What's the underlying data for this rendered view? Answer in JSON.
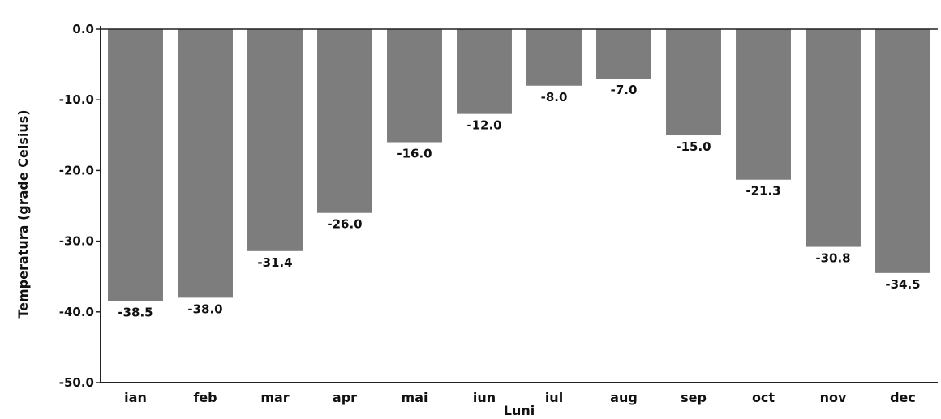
{
  "chart_data": {
    "type": "bar",
    "title": "",
    "xlabel": "Luni",
    "ylabel": "Temperatura (grade Celsius)",
    "categories": [
      "ian",
      "feb",
      "mar",
      "apr",
      "mai",
      "iun",
      "iul",
      "aug",
      "sep",
      "oct",
      "nov",
      "dec"
    ],
    "values": [
      -38.5,
      -38.0,
      -31.4,
      -26.0,
      -16.0,
      -12.0,
      -8.0,
      -7.0,
      -15.0,
      -21.3,
      -30.8,
      -34.5
    ],
    "value_labels": [
      "-38.5",
      "-38.0",
      "-31.4",
      "-26.0",
      "-16.0",
      "-12.0",
      "-8.0",
      "-7.0",
      "-15.0",
      "-21.3",
      "-30.8",
      "-34.5"
    ],
    "ylim": [
      -50,
      0
    ],
    "yticks": [
      0,
      -10,
      -20,
      -30,
      -40,
      -50
    ],
    "ytick_labels": [
      "0.0",
      "-10.0",
      "-20.0",
      "-30.0",
      "-40.0",
      "-50.0"
    ],
    "grid": false,
    "legend": "none",
    "colors": {
      "bar": "#7d7d7d",
      "axis": "#222222",
      "text": "#111111"
    }
  }
}
